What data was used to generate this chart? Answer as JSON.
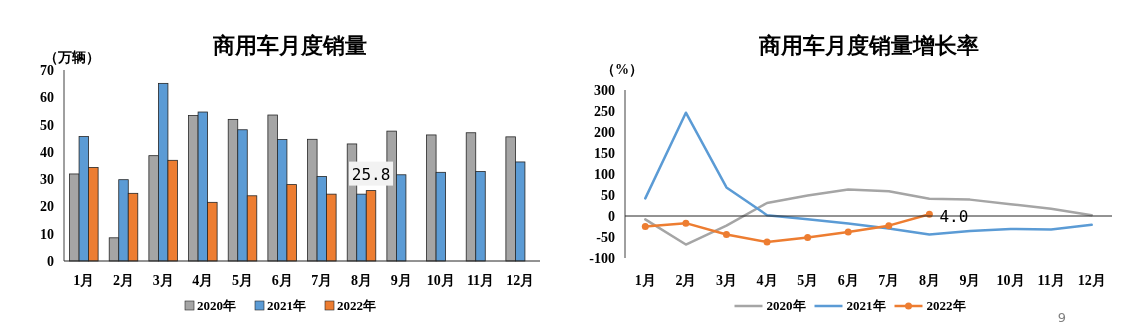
{
  "chart_data": [
    {
      "type": "bar",
      "title": "商用车月度销量",
      "ylabel": "（万辆）",
      "categories": [
        "1月",
        "2月",
        "3月",
        "4月",
        "5月",
        "6月",
        "7月",
        "8月",
        "9月",
        "10月",
        "11月",
        "12月"
      ],
      "ylim": [
        0,
        70
      ],
      "yticks": [
        0,
        10,
        20,
        30,
        40,
        50,
        60,
        70
      ],
      "legend": "bottom",
      "series": [
        {
          "name": "2020年",
          "color": "#a5a5a5",
          "values": [
            31.9,
            8.5,
            38.6,
            53.3,
            51.9,
            53.5,
            44.6,
            42.9,
            47.6,
            46.2,
            47.0,
            45.5
          ]
        },
        {
          "name": "2021年",
          "color": "#5b9bd5",
          "values": [
            45.6,
            29.8,
            65.1,
            54.6,
            48.1,
            44.5,
            31.0,
            24.5,
            31.6,
            32.5,
            32.8,
            36.3
          ]
        },
        {
          "name": "2022年",
          "color": "#ed7d31",
          "values": [
            34.3,
            24.8,
            36.9,
            21.5,
            23.9,
            28.0,
            24.5,
            25.8,
            null,
            null,
            null,
            null
          ],
          "value_labels": [
            null,
            null,
            null,
            null,
            null,
            null,
            null,
            "25.8",
            null,
            null,
            null,
            null
          ]
        }
      ]
    },
    {
      "type": "line",
      "title": "商用车月度销量增长率",
      "ylabel": "（%）",
      "categories": [
        "1月",
        "2月",
        "3月",
        "4月",
        "5月",
        "6月",
        "7月",
        "8月",
        "9月",
        "10月",
        "11月",
        "12月"
      ],
      "ylim": [
        -100,
        300
      ],
      "yticks": [
        -100,
        -50,
        0,
        50,
        100,
        150,
        200,
        250,
        300
      ],
      "legend": "bottom",
      "annotations": [
        "9"
      ],
      "series": [
        {
          "name": "2020年",
          "color": "#a5a5a5",
          "marker": "none",
          "values": [
            -8,
            -68,
            -23,
            31,
            49,
            63,
            59,
            41,
            39,
            28,
            17,
            2
          ]
        },
        {
          "name": "2021年",
          "color": "#5b9bd5",
          "marker": "none",
          "values": [
            42,
            246,
            68,
            2,
            -8,
            -18,
            -30,
            -44,
            -36,
            -31,
            -32,
            -21
          ]
        },
        {
          "name": "2022年",
          "color": "#ed7d31",
          "marker": "circle",
          "values": [
            -25,
            -17,
            -44,
            -62,
            -51,
            -38,
            -23,
            4.0,
            null,
            null,
            null,
            null
          ],
          "value_labels": [
            null,
            null,
            null,
            null,
            null,
            null,
            null,
            "4.0",
            null,
            null,
            null,
            null
          ]
        }
      ]
    }
  ]
}
